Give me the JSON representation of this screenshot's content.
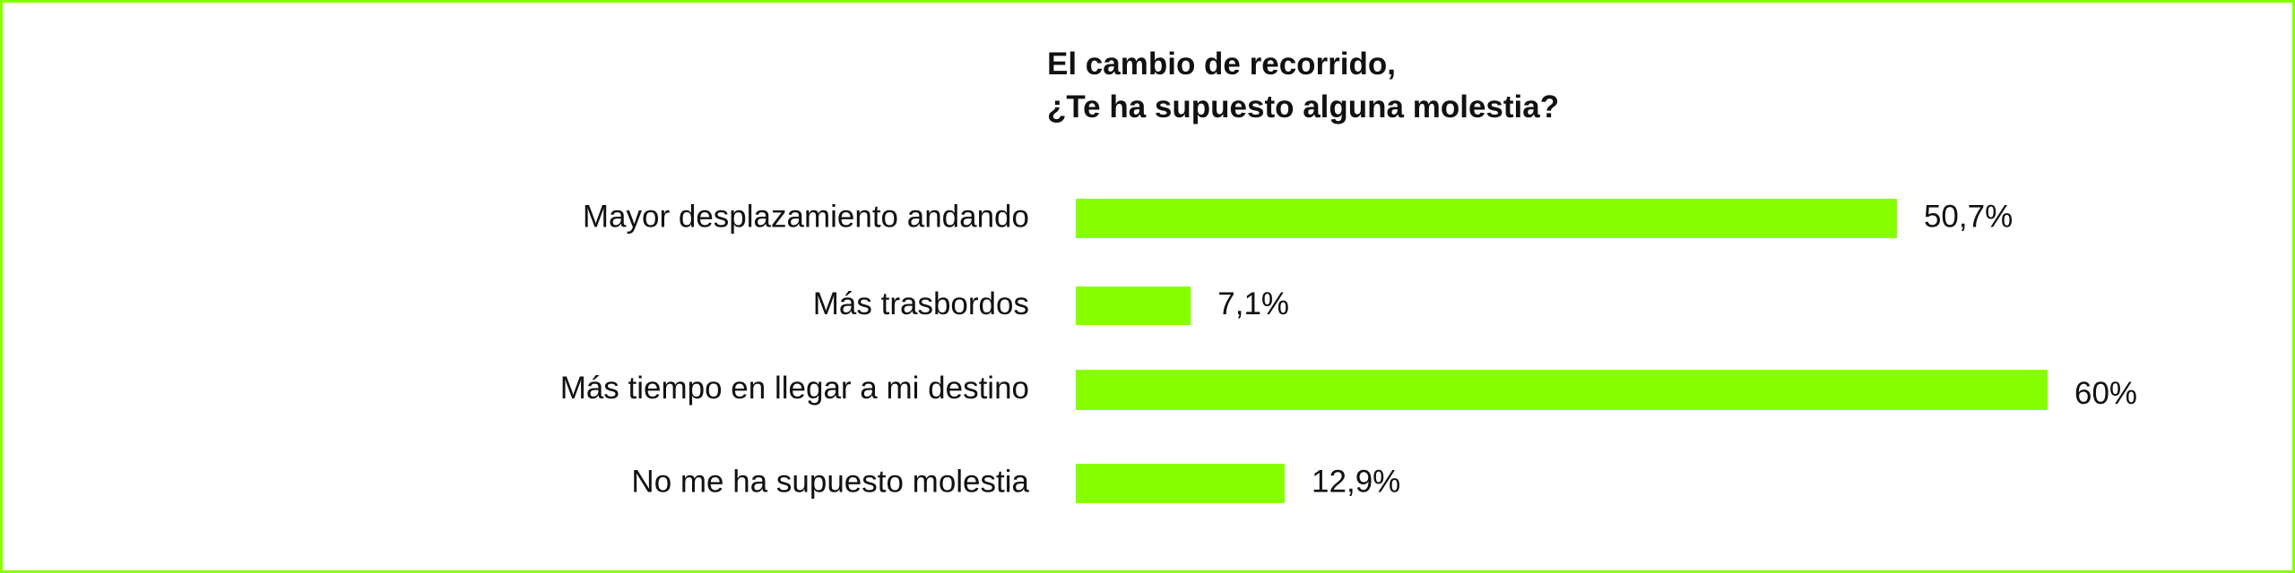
{
  "chart_data": {
    "type": "bar",
    "orientation": "horizontal",
    "title_lines": [
      "El cambio de recorrido,",
      "¿Te ha supuesto alguna molestia?"
    ],
    "categories": [
      "Mayor desplazamiento andando",
      "Más trasbordos",
      "Más tiempo en llegar a mi destino",
      "No me ha supuesto molestia"
    ],
    "values": [
      50.7,
      7.1,
      60,
      12.9
    ],
    "value_labels": [
      "50,7%",
      "7,1%",
      "60%",
      "12,9%"
    ],
    "xlim": [
      0,
      60
    ],
    "grid": false,
    "legend": "none"
  },
  "colors": {
    "bar": "#86ff00",
    "border": "#86ff00",
    "text": "#111111"
  }
}
